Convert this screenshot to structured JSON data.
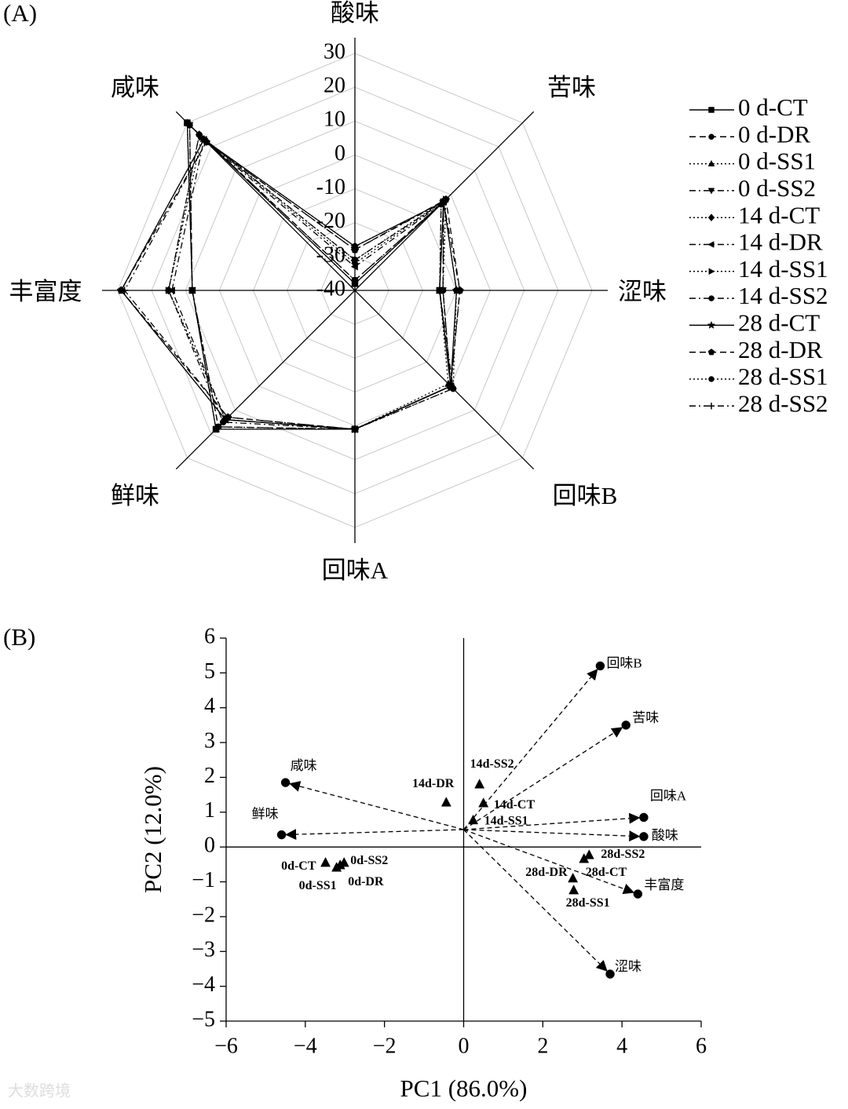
{
  "watermark": "大数跨境",
  "chart_data": [
    {
      "type": "radar",
      "panel_label": "(A)",
      "categories": [
        "酸味",
        "苦味",
        "涩味",
        "回味B",
        "回味A",
        "鲜味",
        "丰富度",
        "咸味"
      ],
      "rlim": [
        -40,
        30
      ],
      "rticks": [
        -40,
        -30,
        -20,
        -10,
        0,
        10,
        20,
        30
      ],
      "grid": true,
      "series": [
        {
          "name": "0 d-CT",
          "color": "#000000",
          "marker": "square",
          "dash": "solid",
          "values": [
            -38,
            -3,
            -15,
            0,
            1,
            18,
            8,
            30
          ]
        },
        {
          "name": "0 d-DR",
          "color": "#000000",
          "marker": "circle",
          "dash": "dashed",
          "values": [
            -37,
            -3,
            -14,
            0,
            1,
            17,
            8,
            29
          ]
        },
        {
          "name": "0 d-SS1",
          "color": "#000000",
          "marker": "triangle",
          "dash": "dotted",
          "values": [
            -38,
            -4,
            -15,
            -1,
            1,
            18,
            8,
            30
          ]
        },
        {
          "name": "0 d-SS2",
          "color": "#000000",
          "marker": "triangle-down",
          "dash": "dashdot",
          "values": [
            -37,
            -3,
            -14,
            0,
            1,
            17,
            8,
            29
          ]
        },
        {
          "name": "14 d-CT",
          "color": "#000000",
          "marker": "diamond",
          "dash": "dotted",
          "values": [
            -32,
            -3,
            -15,
            0,
            1,
            14,
            15,
            25
          ]
        },
        {
          "name": "14 d-DR",
          "color": "#000000",
          "marker": "triangle-left",
          "dash": "dashdot",
          "values": [
            -33,
            -4,
            -15,
            0,
            1,
            14,
            14,
            23
          ]
        },
        {
          "name": "14 d-SS1",
          "color": "#000000",
          "marker": "triangle-right",
          "dash": "dotted",
          "values": [
            -31,
            -2,
            -14,
            0,
            1,
            14,
            15,
            24
          ]
        },
        {
          "name": "14 d-SS2",
          "color": "#000000",
          "marker": "circle",
          "dash": "dashdot",
          "values": [
            -31,
            -3,
            -15,
            1,
            1,
            15,
            15,
            25
          ]
        },
        {
          "name": "28 d-CT",
          "color": "#000000",
          "marker": "star",
          "dash": "solid",
          "values": [
            -27,
            -3,
            -10,
            0,
            1,
            14,
            29,
            23
          ]
        },
        {
          "name": "28 d-DR",
          "color": "#000000",
          "marker": "pentagon",
          "dash": "dashed",
          "values": [
            -28,
            -2,
            -9,
            0,
            1,
            13,
            29,
            22
          ]
        },
        {
          "name": "28 d-SS1",
          "color": "#000000",
          "marker": "circle",
          "dash": "dotted",
          "values": [
            -27,
            -3,
            -10,
            1,
            1,
            14,
            29,
            23
          ]
        },
        {
          "name": "28 d-SS2",
          "color": "#000000",
          "marker": "plus",
          "dash": "dashdot",
          "values": [
            -28,
            -3,
            -9,
            0,
            1,
            13,
            28,
            22
          ]
        }
      ]
    },
    {
      "type": "biplot",
      "panel_label": "(B)",
      "xlabel": "PC1 (86.0%)",
      "ylabel": "PC2 (12.0%)",
      "xlim": [
        -6,
        6
      ],
      "ylim": [
        -5,
        6
      ],
      "xticks": [
        {
          "value": -6,
          "label": "−6"
        },
        {
          "value": -4,
          "label": "−4"
        },
        {
          "value": -2,
          "label": "−2"
        },
        0,
        2,
        4,
        6
      ],
      "yticks": [
        {
          "value": -5,
          "label": "−5"
        },
        {
          "value": -4,
          "label": "−4"
        },
        {
          "value": -3,
          "label": "−3"
        },
        {
          "value": -2,
          "label": "−2"
        },
        {
          "value": -1,
          "label": "−1"
        },
        0,
        1,
        2,
        3,
        4,
        5,
        6
      ],
      "color": "#000000",
      "points": [
        {
          "label": "14d-SS2",
          "x": 0.4,
          "y": 1.8
        },
        {
          "label": "14d-DR",
          "x": -0.44,
          "y": 1.28
        },
        {
          "label": "14d-CT",
          "x": 0.5,
          "y": 1.26
        },
        {
          "label": "14d-SS1",
          "x": 0.24,
          "y": 0.77
        },
        {
          "label": "0d-CT",
          "x": -3.49,
          "y": -0.45
        },
        {
          "label": "0d-SS2",
          "x": -3.02,
          "y": -0.45
        },
        {
          "label": "0d-SS1",
          "x": -3.21,
          "y": -0.59
        },
        {
          "label": "0d-DR",
          "x": -3.12,
          "y": -0.52
        },
        {
          "label": "28d-SS2",
          "x": 3.17,
          "y": -0.23
        },
        {
          "label": "28d-CT",
          "x": 3.04,
          "y": -0.34
        },
        {
          "label": "28d-DR",
          "x": 2.76,
          "y": -0.9
        },
        {
          "label": "28d-SS1",
          "x": 2.78,
          "y": -1.24
        }
      ],
      "arrow_origin": [
        0,
        0.5
      ],
      "vectors": [
        {
          "label": "回味B",
          "x": 3.45,
          "y": 5.2
        },
        {
          "label": "苦味",
          "x": 4.1,
          "y": 3.5
        },
        {
          "label": "回味A",
          "x": 4.55,
          "y": 0.85
        },
        {
          "label": "酸味",
          "x": 4.55,
          "y": 0.3
        },
        {
          "label": "丰富度",
          "x": 4.4,
          "y": -1.35
        },
        {
          "label": "涩味",
          "x": 3.7,
          "y": -3.65
        },
        {
          "label": "咸味",
          "x": -4.5,
          "y": 1.85
        },
        {
          "label": "鲜味",
          "x": -4.6,
          "y": 0.35
        }
      ]
    }
  ]
}
